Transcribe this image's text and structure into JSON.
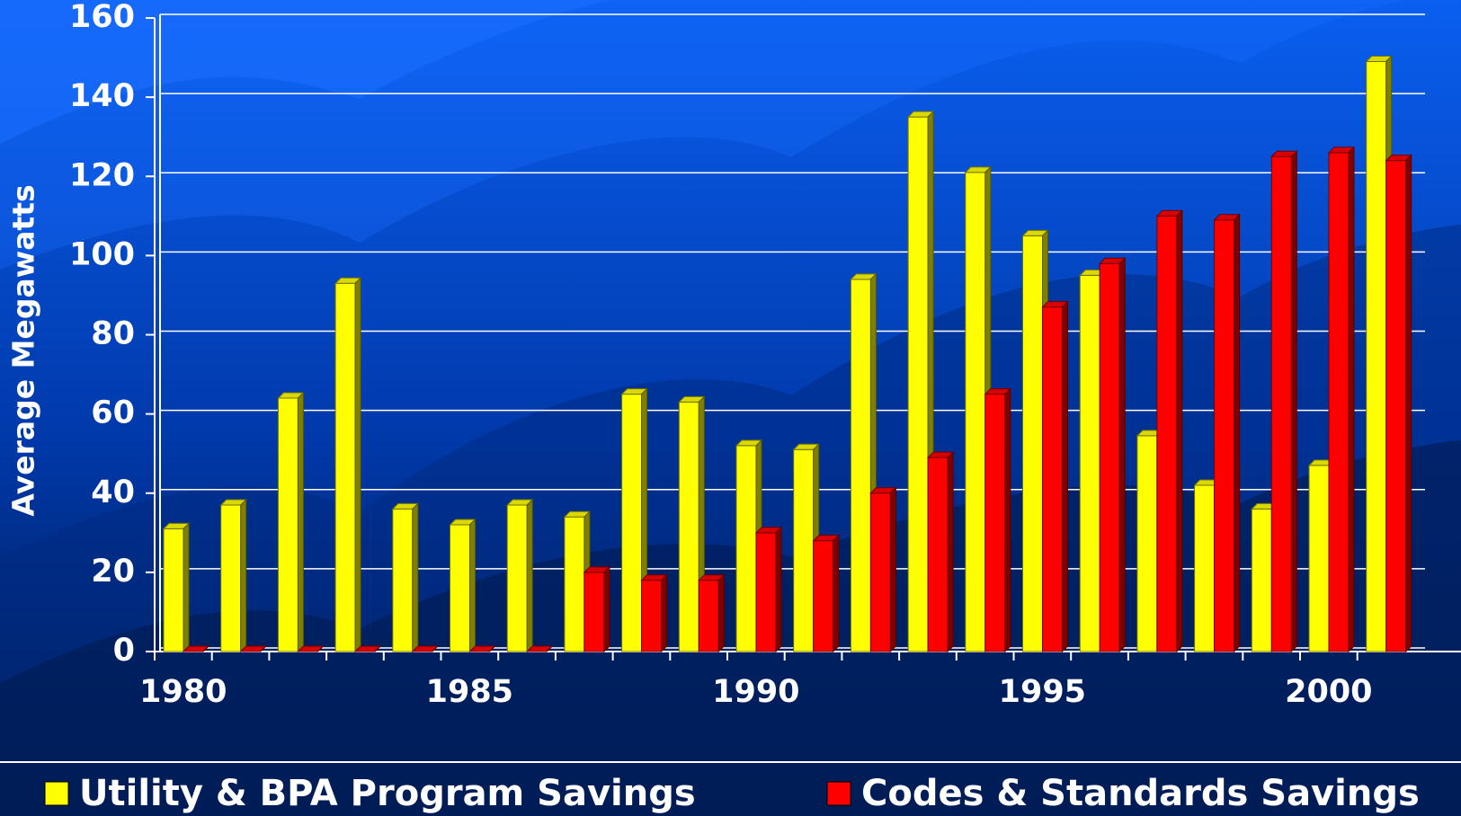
{
  "chart_data": {
    "type": "bar",
    "ylabel": "Average Megawatts",
    "categories": [
      "1980",
      null,
      null,
      null,
      null,
      "1985",
      null,
      null,
      null,
      null,
      "1990",
      null,
      null,
      null,
      null,
      "1995",
      null,
      null,
      null,
      null,
      "2000",
      null
    ],
    "series": [
      {
        "name": "Utility & BPA Program Savings",
        "color": "#ffff00",
        "values": [
          31,
          37,
          64,
          93,
          36,
          32,
          37,
          34,
          65,
          63,
          52,
          51,
          94,
          135,
          121,
          105,
          95,
          54.5,
          42,
          36,
          47,
          149
        ]
      },
      {
        "name": "Codes & Standards Savings",
        "color": "#ff0000",
        "values": [
          0,
          0,
          0,
          0,
          0,
          0,
          0,
          20,
          18,
          18,
          30,
          28,
          40,
          49,
          65,
          87,
          98,
          110,
          109,
          125,
          126,
          124
        ]
      }
    ],
    "ylim": [
      0,
      160
    ],
    "yticks": [
      0,
      20,
      40,
      60,
      80,
      100,
      120,
      140,
      160
    ],
    "grid": true,
    "legend": "bottom"
  }
}
